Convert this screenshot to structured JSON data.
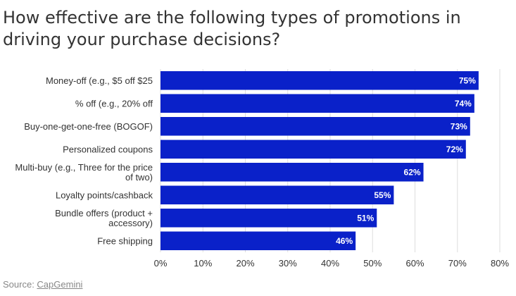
{
  "title": "How effective are the following types of promotions in driving your purchase decisions?",
  "source": {
    "prefix": "Source: ",
    "link_text": "CapGemini"
  },
  "colors": {
    "bar": "#0a21c9",
    "grid": "#dddddd",
    "text": "#333333",
    "source": "#888888"
  },
  "chart_data": {
    "type": "bar",
    "orientation": "horizontal",
    "title": "How effective are the following types of promotions in driving your purchase decisions?",
    "categories": [
      [
        "Money-off (e.g., $5 off $25"
      ],
      [
        "% off (e.g., 20% off"
      ],
      [
        "Buy-one-get-one-free (BOGOF)"
      ],
      [
        "Personalized coupons"
      ],
      [
        "Multi-buy (e.g., Three for the price",
        "of two)"
      ],
      [
        "Loyalty points/cashback"
      ],
      [
        "Bundle offers (product +",
        "accessory)"
      ],
      [
        "Free shipping"
      ]
    ],
    "values": [
      75,
      74,
      73,
      72,
      62,
      55,
      51,
      46
    ],
    "value_labels": [
      "75%",
      "74%",
      "73%",
      "72%",
      "62%",
      "55%",
      "51%",
      "46%"
    ],
    "xlim": [
      0,
      80
    ],
    "xticks": [
      0,
      10,
      20,
      30,
      40,
      50,
      60,
      70,
      80
    ],
    "xtick_labels": [
      "0%",
      "10%",
      "20%",
      "30%",
      "40%",
      "50%",
      "60%",
      "70%",
      "80%"
    ],
    "grid": true,
    "legend": "none"
  }
}
